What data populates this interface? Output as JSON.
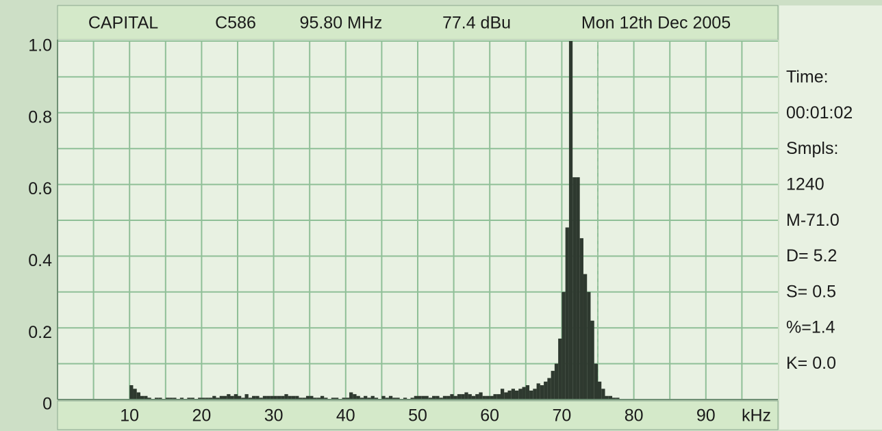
{
  "chart_data": {
    "type": "histogram",
    "header": [
      "CAPITAL",
      "C586",
      "95.80 MHz",
      "77.4 dBu",
      "Mon 12th Dec 2005"
    ],
    "x_unit": "kHz",
    "stats": [
      "Time:",
      "00:01:02",
      "Smpls:",
      "1240",
      "M-71.0",
      "D= 5.2",
      "S= 0.5",
      "%=1.4",
      "K= 0.0"
    ],
    "xlim": [
      0,
      100
    ],
    "xticks": [
      10,
      20,
      30,
      40,
      50,
      60,
      70,
      80,
      90
    ],
    "xminor": [
      5,
      15,
      25,
      35,
      45,
      55,
      65,
      75,
      85,
      95
    ],
    "ylim": [
      0,
      1
    ],
    "yticks": [
      0,
      0.2,
      0.4,
      0.6,
      0.8,
      {
        "value": 1,
        "label": "1.0"
      }
    ],
    "yminor": [
      0.1,
      0.3,
      0.5,
      0.7,
      0.9
    ],
    "marker_x": 75,
    "grid": true,
    "color": "#2e392f",
    "bins": [
      10,
      10.5,
      11,
      11.5,
      12,
      12.5,
      13,
      13.5,
      14,
      14.5,
      15,
      15.5,
      16,
      16.5,
      17,
      17.5,
      18,
      18.5,
      19,
      19.5,
      20,
      20.5,
      21,
      21.5,
      22,
      22.5,
      23,
      23.5,
      24,
      24.5,
      25,
      25.5,
      26,
      26.5,
      27,
      27.5,
      28,
      28.5,
      29,
      29.5,
      30,
      30.5,
      31,
      31.5,
      32,
      32.5,
      33,
      33.5,
      34,
      34.5,
      35,
      35.5,
      36,
      36.5,
      37,
      37.5,
      38,
      38.5,
      39,
      39.5,
      40,
      40.5,
      41,
      41.5,
      42,
      42.5,
      43,
      43.5,
      44,
      44.5,
      45,
      45.5,
      46,
      46.5,
      47,
      47.5,
      48,
      48.5,
      49,
      49.5,
      50,
      50.5,
      51,
      51.5,
      52,
      52.5,
      53,
      53.5,
      54,
      54.5,
      55,
      55.5,
      56,
      56.5,
      57,
      57.5,
      58,
      58.5,
      59,
      59.5,
      60,
      60.5,
      61,
      61.5,
      62,
      62.5,
      63,
      63.5,
      64,
      64.5,
      65,
      65.5,
      66,
      66.5,
      67,
      67.5,
      68,
      68.5,
      69,
      69.5,
      70,
      70.5,
      71,
      71.5,
      72,
      72.5,
      73,
      73.5,
      74,
      74.5,
      75,
      75.5,
      76,
      76.5,
      77,
      77.5,
      78,
      78.5,
      79,
      79.5,
      80
    ],
    "values": [
      0.04,
      0.03,
      0.02,
      0.01,
      0.01,
      0.005,
      0,
      0.005,
      0.005,
      0,
      0.005,
      0.005,
      0.005,
      0,
      0.005,
      0,
      0.005,
      0.005,
      0,
      0.005,
      0.005,
      0.005,
      0.005,
      0.01,
      0.005,
      0.01,
      0.01,
      0.015,
      0.01,
      0.015,
      0.01,
      0.005,
      0.015,
      0.005,
      0.01,
      0.01,
      0.005,
      0.01,
      0.01,
      0.01,
      0.01,
      0.01,
      0.01,
      0.015,
      0.01,
      0.01,
      0.01,
      0.005,
      0.005,
      0.01,
      0.01,
      0.005,
      0.005,
      0.01,
      0.005,
      0,
      0.005,
      0.005,
      0,
      0.005,
      0.005,
      0.02,
      0.015,
      0.01,
      0.005,
      0.01,
      0.005,
      0.01,
      0.005,
      0,
      0.01,
      0.005,
      0.01,
      0.005,
      0.005,
      0,
      0.005,
      0,
      0.005,
      0.01,
      0.01,
      0.01,
      0.01,
      0.005,
      0.01,
      0.01,
      0.005,
      0.01,
      0.01,
      0.015,
      0.01,
      0.015,
      0.015,
      0.02,
      0.015,
      0.01,
      0.015,
      0.02,
      0.01,
      0.01,
      0.01,
      0.015,
      0.015,
      0.03,
      0.02,
      0.025,
      0.03,
      0.025,
      0.03,
      0.035,
      0.04,
      0.025,
      0.03,
      0.045,
      0.04,
      0.05,
      0.06,
      0.08,
      0.1,
      0.17,
      0.3,
      0.48,
      1,
      0.62,
      0.62,
      0.45,
      0.35,
      0.3,
      0.22,
      0.1,
      0.05,
      0.03,
      0.01,
      0.01,
      0.005,
      0.005,
      0,
      0,
      0,
      0
    ]
  }
}
